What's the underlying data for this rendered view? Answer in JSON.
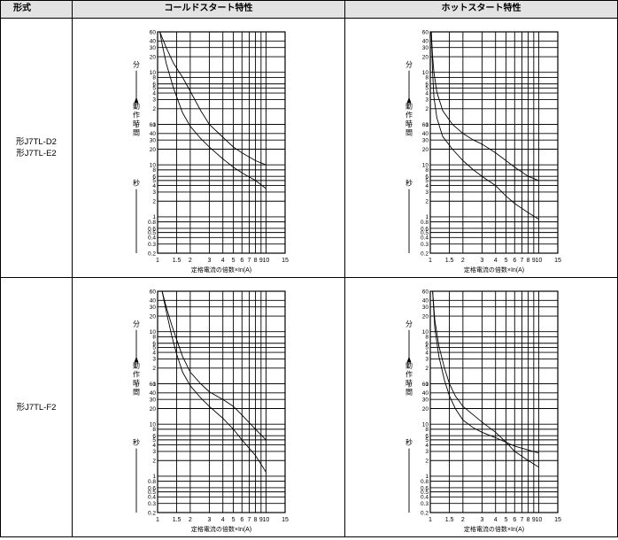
{
  "headers": {
    "model": "形式",
    "cold": "コールドスタート特性",
    "hot": "ホットスタート特性"
  },
  "rows": [
    {
      "models": [
        "形J7TL-D2",
        "形J7TL-E2"
      ]
    },
    {
      "models": [
        "形J7TL-F2"
      ]
    }
  ],
  "axis": {
    "x_ticks": [
      "1",
      "1.5",
      "2",
      "3",
      "4",
      "5",
      "6",
      "7",
      "8",
      "9",
      "10",
      "15"
    ],
    "x_label": "定格電流の倍数×In(A)",
    "min_ticks": [
      "60",
      "40",
      "30",
      "20",
      "10",
      "8",
      "6",
      "5",
      "4",
      "3",
      "2",
      "1"
    ],
    "sec_ticks": [
      "60",
      "40",
      "30",
      "20",
      "10",
      "8",
      "6",
      "5",
      "4",
      "3",
      "2",
      "1",
      "0.8",
      "0.6",
      "0.5",
      "0.4",
      "0.3",
      "0.2"
    ],
    "unit_min": "分",
    "unit_sec": "秒",
    "action_time": "動作時間"
  },
  "chart_data": [
    {
      "id": "cold-D2-E2",
      "type": "line",
      "x_scale": "log",
      "xlim": [
        1,
        15
      ],
      "y_scale": "log",
      "y_units": "seconds",
      "ylim": [
        0.2,
        3600
      ],
      "series": [
        {
          "x": [
            1.05,
            1.1,
            1.2,
            1.4,
            1.7,
            2,
            2.5,
            3,
            4,
            5,
            6,
            8,
            10
          ],
          "y": [
            3600,
            2800,
            1800,
            900,
            480,
            260,
            110,
            60,
            34,
            22,
            17,
            12,
            10
          ]
        },
        {
          "x": [
            1.05,
            1.1,
            1.2,
            1.4,
            1.7,
            2,
            2.5,
            3,
            4,
            5,
            6,
            8,
            10
          ],
          "y": [
            3600,
            2100,
            900,
            300,
            100,
            55,
            32,
            22,
            13,
            9,
            7,
            5,
            3.5
          ]
        }
      ]
    },
    {
      "id": "hot-D2-E2",
      "type": "line",
      "x_scale": "log",
      "xlim": [
        1,
        15
      ],
      "y_scale": "log",
      "y_units": "seconds",
      "ylim": [
        0.2,
        3600
      ],
      "series": [
        {
          "x": [
            1.02,
            1.05,
            1.08,
            1.15,
            1.3,
            1.6,
            2,
            2.5,
            3,
            4,
            5,
            6,
            8,
            10
          ],
          "y": [
            3600,
            1200,
            600,
            250,
            110,
            60,
            40,
            30,
            25,
            17,
            12,
            9,
            6,
            5
          ]
        },
        {
          "x": [
            1.02,
            1.05,
            1.08,
            1.15,
            1.3,
            1.6,
            2,
            2.5,
            3,
            4,
            5,
            6,
            8,
            10
          ],
          "y": [
            3600,
            600,
            200,
            80,
            35,
            20,
            12,
            8,
            6,
            4,
            2.5,
            1.8,
            1.2,
            0.9
          ]
        }
      ]
    },
    {
      "id": "cold-F2",
      "type": "line",
      "x_scale": "log",
      "xlim": [
        1,
        15
      ],
      "y_scale": "log",
      "y_units": "seconds",
      "ylim": [
        0.2,
        3600
      ],
      "series": [
        {
          "x": [
            1.1,
            1.2,
            1.35,
            1.5,
            1.7,
            2,
            2.5,
            3,
            4,
            5,
            6,
            8,
            10
          ],
          "y": [
            3600,
            1800,
            800,
            420,
            200,
            100,
            60,
            42,
            30,
            22,
            15,
            8,
            5
          ]
        },
        {
          "x": [
            1.1,
            1.2,
            1.35,
            1.5,
            1.7,
            2,
            2.5,
            3,
            4,
            5,
            6,
            8,
            10
          ],
          "y": [
            3600,
            1500,
            500,
            220,
            100,
            55,
            32,
            22,
            13,
            8,
            5,
            2.5,
            1.2
          ]
        }
      ]
    },
    {
      "id": "hot-F2",
      "type": "line",
      "x_scale": "log",
      "xlim": [
        1,
        15
      ],
      "y_scale": "log",
      "y_units": "seconds",
      "ylim": [
        0.2,
        3600
      ],
      "series": [
        {
          "x": [
            1.05,
            1.1,
            1.2,
            1.35,
            1.5,
            1.7,
            2,
            2.5,
            3,
            4,
            5,
            6,
            8,
            10
          ],
          "y": [
            3600,
            1000,
            320,
            120,
            60,
            35,
            22,
            15,
            11,
            7,
            4.5,
            3,
            2,
            1.5
          ]
        },
        {
          "x": [
            1.05,
            1.1,
            1.2,
            1.35,
            1.5,
            1.7,
            2,
            2.5,
            3,
            4,
            5,
            6,
            8,
            10
          ],
          "y": [
            3600,
            700,
            200,
            70,
            35,
            20,
            12,
            8.5,
            7,
            5.5,
            4.5,
            3.8,
            3.2,
            2.8
          ]
        }
      ]
    }
  ]
}
